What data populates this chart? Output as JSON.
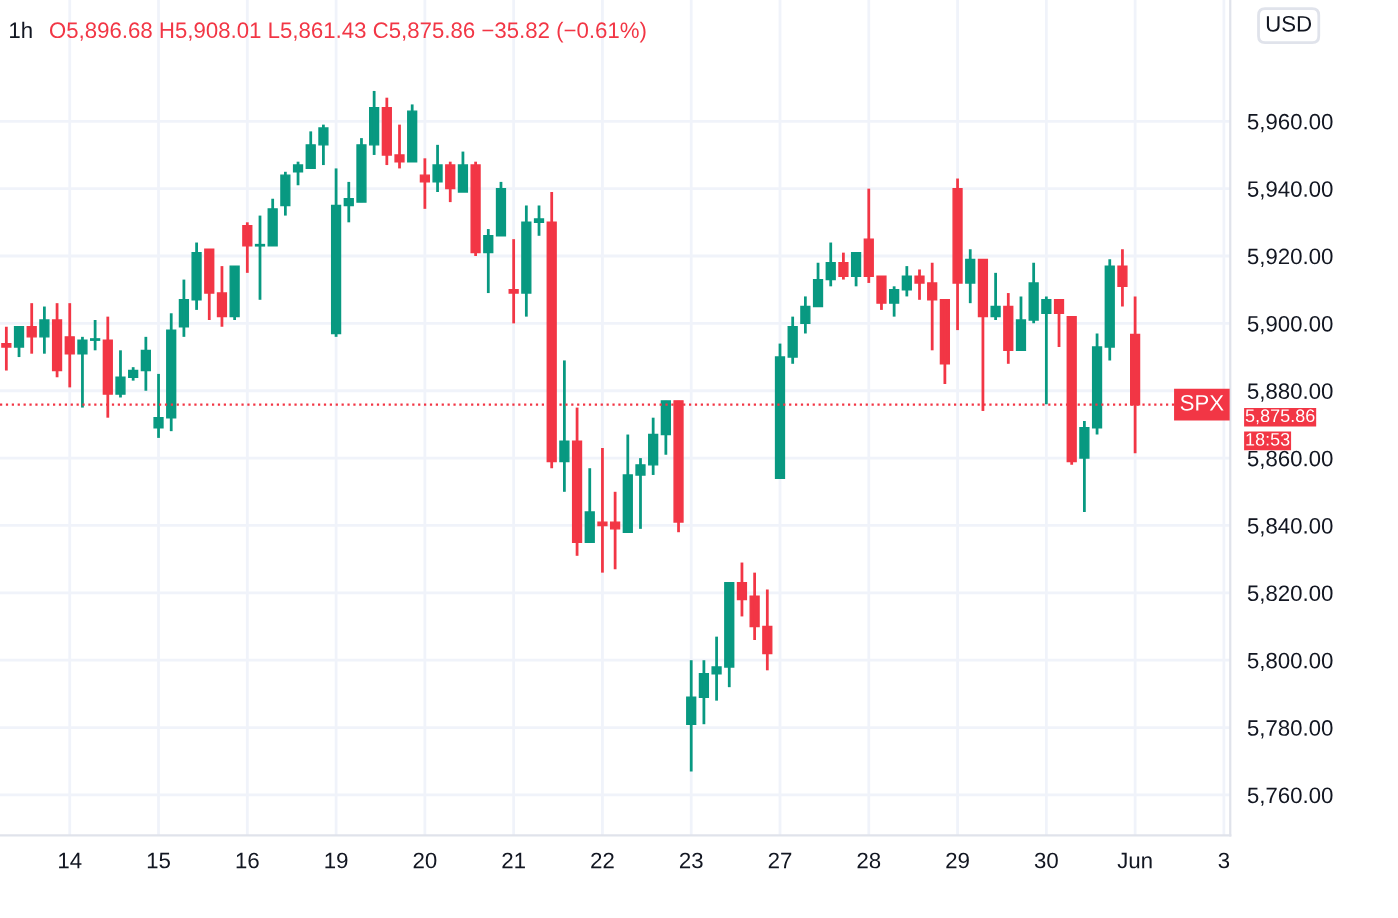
{
  "chart_data": {
    "type": "candlestick",
    "title": "1h",
    "subtitle": "O5,896.68 H5,908.01 L5,861.43 C5,875.86 −35.82 (−0.61%)",
    "categories": [
      null,
      null,
      null,
      null,
      null,
      "14",
      null,
      null,
      null,
      null,
      null,
      null,
      "15",
      null,
      null,
      null,
      null,
      null,
      null,
      "16",
      null,
      null,
      null,
      null,
      null,
      null,
      "19",
      null,
      null,
      null,
      null,
      null,
      null,
      "20",
      null,
      null,
      null,
      null,
      null,
      null,
      "21",
      null,
      null,
      null,
      null,
      null,
      null,
      "22",
      null,
      null,
      null,
      null,
      null,
      null,
      "23",
      null,
      null,
      null,
      null,
      null,
      null,
      "27",
      null,
      null,
      null,
      null,
      null,
      null,
      "28",
      null,
      null,
      null,
      null,
      null,
      null,
      "29",
      null,
      null,
      null,
      null,
      null,
      null,
      "30",
      null,
      null,
      null,
      null,
      null,
      null,
      "Jun",
      null,
      null,
      null,
      null,
      null,
      null,
      "3"
    ],
    "ohlc": [
      [
        5894,
        5899,
        5886,
        5893
      ],
      [
        5893,
        5899,
        5890,
        5899
      ],
      [
        5899,
        5906,
        5891,
        5896
      ],
      [
        5896,
        5905,
        5891,
        5901
      ],
      [
        5901,
        5906,
        5884,
        5886
      ],
      [
        5896,
        5906,
        5881,
        5891
      ],
      [
        5891,
        5896,
        5875,
        5895
      ],
      [
        5895,
        5901,
        5892,
        5895
      ],
      [
        5895,
        5902,
        5872,
        5879
      ],
      [
        5879,
        5892,
        5878,
        5884
      ],
      [
        5884,
        5887,
        5883,
        5886
      ],
      [
        5886,
        5896,
        5880,
        5892
      ],
      [
        5869,
        5885,
        5866,
        5872
      ],
      [
        5872,
        5903,
        5868,
        5898
      ],
      [
        5899,
        5913,
        5896,
        5907
      ],
      [
        5907,
        5924,
        5904,
        5921
      ],
      [
        5922,
        5922,
        5901,
        5909
      ],
      [
        5909,
        5917,
        5899,
        5902
      ],
      [
        5902,
        5917,
        5901,
        5917
      ],
      [
        5929,
        5930,
        5915,
        5923
      ],
      [
        5923,
        5932,
        5907,
        5923
      ],
      [
        5923,
        5937,
        5923,
        5934
      ],
      [
        5935,
        5945,
        5932,
        5944
      ],
      [
        5945,
        5948,
        5941,
        5947
      ],
      [
        5946,
        5957,
        5946,
        5953
      ],
      [
        5953,
        5959,
        5947,
        5958
      ],
      [
        5897,
        5946,
        5896,
        5935
      ],
      [
        5935,
        5942,
        5930,
        5937
      ],
      [
        5936,
        5955,
        5936,
        5953
      ],
      [
        5953,
        5969,
        5950,
        5964
      ],
      [
        5964,
        5967,
        5947,
        5950
      ],
      [
        5950,
        5959,
        5946,
        5948
      ],
      [
        5948,
        5965,
        5948,
        5963
      ],
      [
        5944,
        5949,
        5934,
        5942
      ],
      [
        5942,
        5953,
        5939,
        5947
      ],
      [
        5947,
        5948,
        5936,
        5940
      ],
      [
        5939,
        5951,
        5939,
        5947
      ],
      [
        5947,
        5948,
        5920,
        5921
      ],
      [
        5921,
        5928,
        5909,
        5926
      ],
      [
        5926,
        5942,
        5926,
        5940
      ],
      [
        5910,
        5925,
        5900,
        5909
      ],
      [
        5909,
        5935,
        5902,
        5930
      ],
      [
        5930,
        5935,
        5926,
        5931
      ],
      [
        5930,
        5939,
        5857,
        5859
      ],
      [
        5859,
        5889,
        5850,
        5865
      ],
      [
        5865,
        5875,
        5831,
        5835
      ],
      [
        5835,
        5857,
        5835,
        5844
      ],
      [
        5841,
        5863,
        5826,
        5840
      ],
      [
        5841,
        5850,
        5827,
        5839
      ],
      [
        5838,
        5867,
        5838,
        5855
      ],
      [
        5855,
        5860,
        5839,
        5858
      ],
      [
        5858,
        5872,
        5855,
        5867
      ],
      [
        5867,
        5877,
        5861,
        5877
      ],
      [
        5877,
        5877,
        5838,
        5841
      ],
      [
        5781,
        5800,
        5767,
        5789
      ],
      [
        5789,
        5800,
        5781,
        5796
      ],
      [
        5796,
        5807,
        5788,
        5798
      ],
      [
        5798,
        5823,
        5792,
        5823
      ],
      [
        5823,
        5829,
        5813,
        5818
      ],
      [
        5819,
        5826,
        5806,
        5810
      ],
      [
        5810,
        5821,
        5797,
        5802
      ],
      [
        5854,
        5894,
        5854,
        5890
      ],
      [
        5890,
        5902,
        5888,
        5899
      ],
      [
        5900,
        5908,
        5897,
        5905
      ],
      [
        5905,
        5918,
        5905,
        5913
      ],
      [
        5913,
        5924,
        5911,
        5918
      ],
      [
        5918,
        5921,
        5913,
        5914
      ],
      [
        5914,
        5921,
        5911,
        5921
      ],
      [
        5925,
        5940,
        5912,
        5914
      ],
      [
        5914,
        5914,
        5904,
        5906
      ],
      [
        5906,
        5911,
        5902,
        5910
      ],
      [
        5910,
        5917,
        5908,
        5914
      ],
      [
        5914,
        5916,
        5907,
        5912
      ],
      [
        5912,
        5918,
        5892,
        5907
      ],
      [
        5907,
        5907,
        5882,
        5888
      ],
      [
        5940,
        5943,
        5898,
        5912
      ],
      [
        5912,
        5922,
        5906,
        5919
      ],
      [
        5919,
        5919,
        5874,
        5902
      ],
      [
        5902,
        5915,
        5901,
        5905
      ],
      [
        5905,
        5909,
        5888,
        5892
      ],
      [
        5892,
        5908,
        5892,
        5901
      ],
      [
        5901,
        5918,
        5900,
        5912
      ],
      [
        5903,
        5908,
        5876,
        5907
      ],
      [
        5907,
        5907,
        5893,
        5903
      ],
      [
        5902,
        5902,
        5858,
        5859
      ],
      [
        5860,
        5871,
        5844,
        5869
      ],
      [
        5869,
        5897,
        5867,
        5893
      ],
      [
        5893,
        5919,
        5889,
        5917
      ],
      [
        5917,
        5922,
        5905,
        5911
      ],
      [
        5896.68,
        5908.01,
        5861.43,
        5875.86
      ],
      null,
      null,
      null,
      null,
      null,
      null,
      null
    ],
    "colors": [
      "#f23645",
      "#089981",
      "#f23645",
      "#089981",
      "#f23645",
      "#f23645",
      "#089981",
      "#089981",
      "#f23645",
      "#089981",
      "#089981",
      "#089981",
      "#089981",
      "#089981",
      "#089981",
      "#089981",
      "#f23645",
      "#f23645",
      "#089981",
      "#f23645",
      "#089981",
      "#089981",
      "#089981",
      "#089981",
      "#089981",
      "#089981",
      "#089981",
      "#089981",
      "#089981",
      "#089981",
      "#f23645",
      "#f23645",
      "#089981",
      "#f23645",
      "#089981",
      "#f23645",
      "#089981",
      "#f23645",
      "#089981",
      "#089981",
      "#f23645",
      "#089981",
      "#089981",
      "#f23645",
      "#089981",
      "#f23645",
      "#089981",
      "#f23645",
      "#f23645",
      "#089981",
      "#089981",
      "#089981",
      "#089981",
      "#f23645",
      "#089981",
      "#089981",
      "#089981",
      "#089981",
      "#f23645",
      "#f23645",
      "#f23645",
      "#089981",
      "#089981",
      "#089981",
      "#089981",
      "#089981",
      "#f23645",
      "#089981",
      "#f23645",
      "#f23645",
      "#089981",
      "#089981",
      "#f23645",
      "#f23645",
      "#f23645",
      "#f23645",
      "#089981",
      "#f23645",
      "#089981",
      "#f23645",
      "#089981",
      "#089981",
      "#089981",
      "#f23645",
      "#f23645",
      "#089981",
      "#089981",
      "#089981",
      "#f23645",
      "#f23645",
      null,
      null,
      null,
      null,
      null,
      null,
      null
    ],
    "ylim": [
      5748,
      5996
    ],
    "yticks": [
      {
        "value": 5760,
        "label": "5,760.00"
      },
      {
        "value": 5780,
        "label": "5,780.00"
      },
      {
        "value": 5800,
        "label": "5,800.00"
      },
      {
        "value": 5820,
        "label": "5,820.00"
      },
      {
        "value": 5840,
        "label": "5,840.00"
      },
      {
        "value": 5860,
        "label": "5,860.00"
      },
      {
        "value": 5880,
        "label": "5,880.00"
      },
      {
        "value": 5900,
        "label": "5,900.00"
      },
      {
        "value": 5920,
        "label": "5,920.00"
      },
      {
        "value": 5940,
        "label": "5,940.00"
      },
      {
        "value": 5960,
        "label": "5,960.00"
      }
    ],
    "ref_lines": [
      {
        "axis": "y",
        "value": 5875.86,
        "label": "SPX",
        "color": "#f23645",
        "line_style": "dotted"
      }
    ],
    "annotations": [
      "5,875.86",
      "18:53",
      "USD"
    ],
    "grid": true,
    "legend": false
  }
}
